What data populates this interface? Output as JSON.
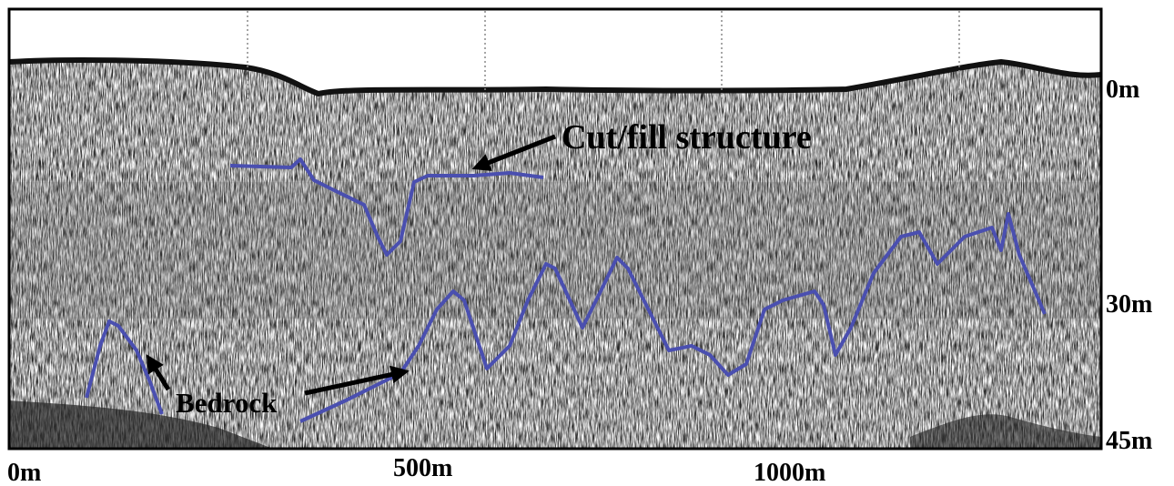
{
  "figure": {
    "annotations": {
      "cut_fill": "Cut/fill structure",
      "bedrock": "Bedrock"
    },
    "depth_labels": [
      "0m",
      "30m",
      "45m"
    ],
    "distance_labels": [
      "0m",
      "500m",
      "1000m"
    ]
  }
}
